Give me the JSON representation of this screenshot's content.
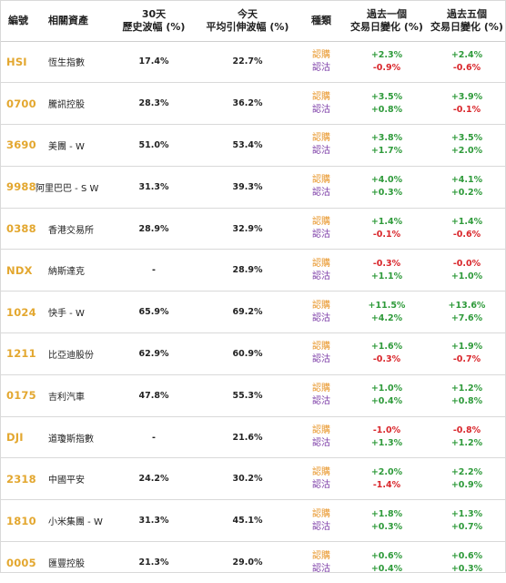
{
  "headers": {
    "code": "編號",
    "asset": "相關資產",
    "hist_vol_line1": "30天",
    "hist_vol_line2": "歷史波幅 (%)",
    "implied_vol_line1": "今天",
    "implied_vol_line2": "平均引伸波幅 (%)",
    "type": "種類",
    "chg1_line1": "過去一個",
    "chg1_line2": "交易日變化 (%)",
    "chg5_line1": "過去五個",
    "chg5_line2": "交易日變化 (%)"
  },
  "type_labels": {
    "call": "認購",
    "put": "認沽"
  },
  "colors": {
    "code": "#e3a72f",
    "call": "#e8962a",
    "put": "#7e3fa8",
    "positive": "#2e9a3a",
    "negative": "#d9262b"
  },
  "rows": [
    {
      "code": "HSI",
      "name": "恆生指數",
      "hist_vol": "17.4%",
      "implied_vol": "22.7%",
      "call_1d": "+2.3%",
      "put_1d": "-0.9%",
      "call_5d": "+2.4%",
      "put_5d": "-0.6%"
    },
    {
      "code": "0700",
      "name": "騰訊控股",
      "hist_vol": "28.3%",
      "implied_vol": "36.2%",
      "call_1d": "+3.5%",
      "put_1d": "+0.8%",
      "call_5d": "+3.9%",
      "put_5d": "-0.1%"
    },
    {
      "code": "3690",
      "name": "美團 - W",
      "hist_vol": "51.0%",
      "implied_vol": "53.4%",
      "call_1d": "+3.8%",
      "put_1d": "+1.7%",
      "call_5d": "+3.5%",
      "put_5d": "+2.0%"
    },
    {
      "code": "9988",
      "name": "阿里巴巴 - S W",
      "hist_vol": "31.3%",
      "implied_vol": "39.3%",
      "call_1d": "+4.0%",
      "put_1d": "+0.3%",
      "call_5d": "+4.1%",
      "put_5d": "+0.2%"
    },
    {
      "code": "0388",
      "name": "香港交易所",
      "hist_vol": "28.9%",
      "implied_vol": "32.9%",
      "call_1d": "+1.4%",
      "put_1d": "-0.1%",
      "call_5d": "+1.4%",
      "put_5d": "-0.6%"
    },
    {
      "code": "NDX",
      "name": "納斯達克",
      "hist_vol": "-",
      "implied_vol": "28.9%",
      "call_1d": "-0.3%",
      "put_1d": "+1.1%",
      "call_5d": "-0.0%",
      "put_5d": "+1.0%"
    },
    {
      "code": "1024",
      "name": "快手 - W",
      "hist_vol": "65.9%",
      "implied_vol": "69.2%",
      "call_1d": "+11.5%",
      "put_1d": "+4.2%",
      "call_5d": "+13.6%",
      "put_5d": "+7.6%"
    },
    {
      "code": "1211",
      "name": "比亞迪股份",
      "hist_vol": "62.9%",
      "implied_vol": "60.9%",
      "call_1d": "+1.6%",
      "put_1d": "-0.3%",
      "call_5d": "+1.9%",
      "put_5d": "-0.7%"
    },
    {
      "code": "0175",
      "name": "吉利汽車",
      "hist_vol": "47.8%",
      "implied_vol": "55.3%",
      "call_1d": "+1.0%",
      "put_1d": "+0.4%",
      "call_5d": "+1.2%",
      "put_5d": "+0.8%"
    },
    {
      "code": "DJI",
      "name": "道瓊斯指數",
      "hist_vol": "-",
      "implied_vol": "21.6%",
      "call_1d": "-1.0%",
      "put_1d": "+1.3%",
      "call_5d": "-0.8%",
      "put_5d": "+1.2%"
    },
    {
      "code": "2318",
      "name": "中國平安",
      "hist_vol": "24.2%",
      "implied_vol": "30.2%",
      "call_1d": "+2.0%",
      "put_1d": "-1.4%",
      "call_5d": "+2.2%",
      "put_5d": "+0.9%"
    },
    {
      "code": "1810",
      "name": "小米集團 - W",
      "hist_vol": "31.3%",
      "implied_vol": "45.1%",
      "call_1d": "+1.8%",
      "put_1d": "+0.3%",
      "call_5d": "+1.3%",
      "put_5d": "+0.7%"
    },
    {
      "code": "0005",
      "name": "匯豐控股",
      "hist_vol": "21.3%",
      "implied_vol": "29.0%",
      "call_1d": "+0.6%",
      "put_1d": "+0.4%",
      "call_5d": "+0.6%",
      "put_5d": "+0.3%"
    }
  ]
}
